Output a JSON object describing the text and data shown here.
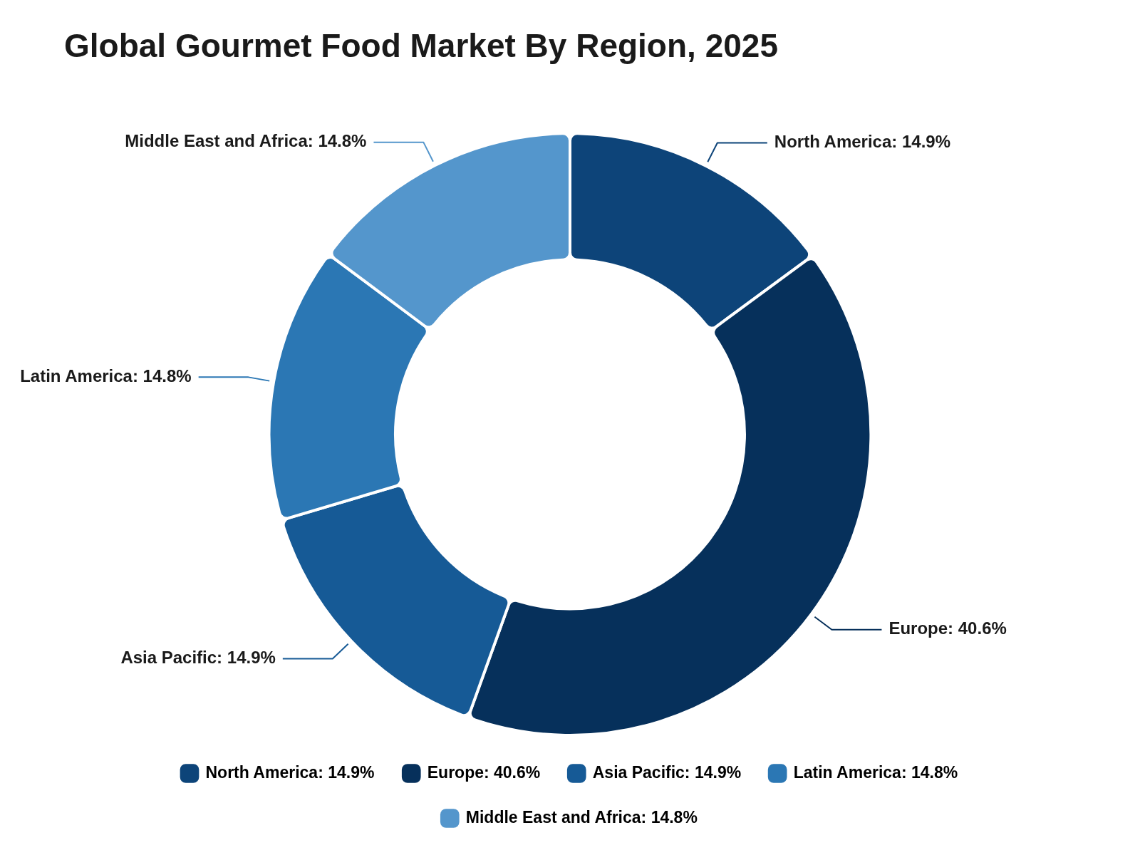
{
  "chart_data": {
    "type": "donut",
    "title": "Global Gourmet Food Market By Region, 2025",
    "categories": [
      "North America",
      "Europe",
      "Asia Pacific",
      "Latin America",
      "Middle East and Africa"
    ],
    "values": [
      14.9,
      40.6,
      14.9,
      14.8,
      14.8
    ],
    "value_labels": [
      "14.9%",
      "40.6%",
      "14.9%",
      "14.8%",
      "14.8%"
    ],
    "colors": [
      "#0d4479",
      "#06305b",
      "#165a96",
      "#2b77b4",
      "#5496cc"
    ],
    "legend": "bottom"
  }
}
